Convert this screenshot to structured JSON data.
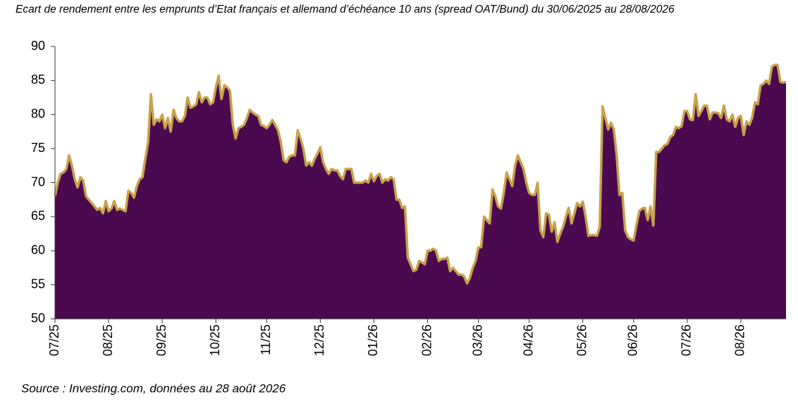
{
  "chart_data": {
    "type": "area",
    "title": "Ecart de rendement entre les emprunts d’Etat français et allemand d’échéance 10 ans (spread OAT/Bund) du 30/06/2025 au 28/08/2026",
    "source": "Source : Investing.com, données au 28 août 2026",
    "fill_color": "#4b0a4f",
    "line_color": "#c8a24c",
    "ylim": [
      50,
      90
    ],
    "yticks": [
      50,
      55,
      60,
      65,
      70,
      75,
      80,
      85,
      90
    ],
    "categories": [
      "07/25",
      null,
      null,
      null,
      null,
      null,
      null,
      null,
      null,
      null,
      null,
      null,
      null,
      null,
      null,
      null,
      null,
      null,
      null,
      "08/25",
      null,
      null,
      null,
      null,
      null,
      null,
      null,
      null,
      null,
      null,
      null,
      null,
      null,
      null,
      null,
      null,
      null,
      null,
      "09/25",
      null,
      null,
      null,
      null,
      null,
      null,
      null,
      null,
      null,
      null,
      null,
      null,
      null,
      null,
      null,
      null,
      null,
      null,
      "10/25",
      null,
      null,
      null,
      null,
      null,
      null,
      null,
      null,
      null,
      null,
      null,
      null,
      null,
      null,
      null,
      null,
      null,
      "11/25",
      null,
      null,
      null,
      null,
      null,
      null,
      null,
      null,
      null,
      null,
      null,
      null,
      null,
      null,
      null,
      null,
      null,
      null,
      "12/25",
      null,
      null,
      null,
      null,
      null,
      null,
      null,
      null,
      null,
      null,
      null,
      null,
      null,
      null,
      null,
      null,
      null,
      null,
      "01/26",
      null,
      null,
      null,
      null,
      null,
      null,
      null,
      null,
      null,
      null,
      null,
      null,
      null,
      null,
      null,
      null,
      null,
      null,
      "02/26",
      null,
      null,
      null,
      null,
      null,
      null,
      null,
      null,
      null,
      null,
      null,
      null,
      null,
      null,
      null,
      null,
      null,
      "03/26",
      null,
      null,
      null,
      null,
      null,
      null,
      null,
      null,
      null,
      null,
      null,
      null,
      null,
      null,
      null,
      null,
      null,
      "04/26",
      null,
      null,
      null,
      null,
      null,
      null,
      null,
      null,
      null,
      null,
      null,
      null,
      null,
      null,
      null,
      null,
      null,
      null,
      "05/26",
      null,
      null,
      null,
      null,
      null,
      null,
      null,
      null,
      null,
      null,
      null,
      null,
      null,
      null,
      null,
      null,
      null,
      "06/26",
      null,
      null,
      null,
      null,
      null,
      null,
      null,
      null,
      null,
      null,
      null,
      null,
      null,
      null,
      null,
      null,
      null,
      null,
      "07/26",
      null,
      null,
      null,
      null,
      null,
      null,
      null,
      null,
      null,
      null,
      null,
      null,
      null,
      null,
      null,
      null,
      null,
      null,
      "08/26",
      null,
      null,
      null,
      null,
      null,
      null,
      null,
      null,
      null,
      null,
      null,
      null,
      null,
      null,
      null,
      null
    ],
    "values": [
      68,
      70,
      71.3,
      71.5,
      72,
      74,
      72.5,
      70.5,
      69.3,
      70.8,
      70.3,
      68,
      67.5,
      67,
      66.5,
      66,
      66.3,
      65.5,
      67.3,
      65.8,
      66.2,
      67.3,
      66,
      66.2,
      66,
      65.8,
      68.8,
      68.5,
      67.8,
      69.5,
      70.5,
      70.8,
      73.5,
      76,
      83,
      78.5,
      79.3,
      79,
      80,
      78,
      79.5,
      77.5,
      80.7,
      79.5,
      79,
      79,
      79.8,
      82.5,
      81,
      81.2,
      81.5,
      83.3,
      81.8,
      82.5,
      82.5,
      81.5,
      81.8,
      84,
      85.7,
      82.3,
      84.3,
      84,
      83.5,
      78.5,
      76.5,
      78,
      78.2,
      78.5,
      79.5,
      80.7,
      80.3,
      80,
      79.8,
      78.5,
      78.3,
      78,
      78.5,
      79.2,
      78.5,
      77.7,
      76,
      73.3,
      73,
      73.8,
      74,
      74,
      77.7,
      76.5,
      75,
      72.5,
      73,
      72.5,
      73.5,
      74.3,
      75.2,
      73,
      72,
      71.3,
      72,
      71.8,
      71.8,
      71,
      70.5,
      72,
      72,
      72,
      70,
      70,
      70,
      70,
      70.3,
      70,
      71.3,
      70.2,
      71,
      71.3,
      70,
      70.5,
      70.3,
      70.8,
      70.5,
      67.5,
      67.5,
      66.3,
      66.5,
      59,
      58,
      57,
      57.2,
      58.5,
      58.3,
      58,
      60,
      60,
      60.3,
      60,
      58.5,
      58.8,
      58.8,
      59,
      57,
      57.5,
      57,
      56.5,
      56.5,
      56.2,
      55.2,
      56,
      57.5,
      58.5,
      60.5,
      60.5,
      65,
      64.5,
      64,
      69,
      68,
      66.5,
      66.2,
      68.5,
      71.5,
      70.5,
      69.5,
      72.5,
      74,
      73,
      72,
      70,
      68.5,
      68.2,
      68.2,
      70,
      63,
      62,
      65.5,
      65.3,
      62.8,
      64.2,
      61.3,
      62.5,
      63.5,
      65,
      66.3,
      64,
      65.5,
      67,
      66.5,
      67.2,
      65,
      62.2,
      62.3,
      62.3,
      62.2,
      63.5,
      81.2,
      79.5,
      77.8,
      78.8,
      77.8,
      74,
      68.2,
      68.5,
      63,
      62,
      61.7,
      61.5,
      63.8,
      65.8,
      66.2,
      66.3,
      64.5,
      66.5,
      63.7,
      74.5,
      74.5,
      75,
      75.5,
      75.7,
      76.7,
      77,
      78.2,
      78,
      78.3,
      80.5,
      80.5,
      79.3,
      79.2,
      83,
      79.8,
      80.5,
      81.3,
      81.3,
      79.3,
      80.3,
      80.3,
      80.2,
      79.5,
      81.3,
      79.3,
      79,
      80,
      78.2,
      79.5,
      79.8,
      77,
      79,
      78.5,
      79.5,
      81.8,
      81.5,
      84.3,
      84.5,
      85,
      84.5,
      87,
      87.3,
      87.3,
      84.8,
      84.7,
      84.8
    ]
  }
}
